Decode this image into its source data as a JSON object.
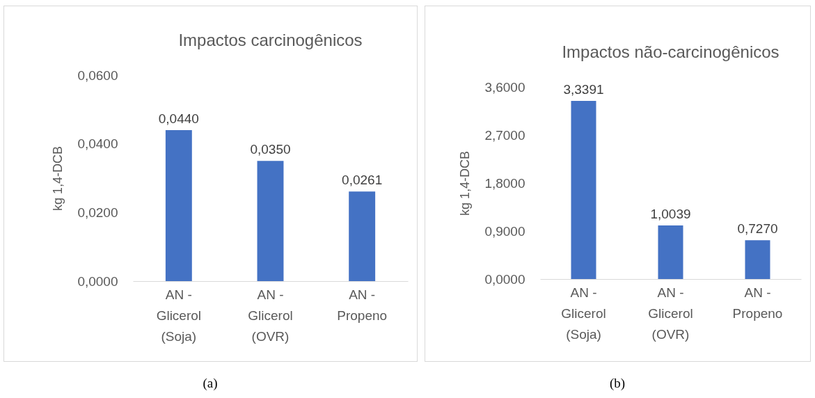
{
  "chart_data": [
    {
      "type": "bar",
      "title": "Impactos carcinogênicos",
      "ylabel": "kg 1,4-DCB",
      "categories": [
        "AN - Glicerol (Soja)",
        "AN - Glicerol (OVR)",
        "AN - Propeno"
      ],
      "values": [
        0.044,
        0.035,
        0.0261
      ],
      "value_labels": [
        "0,0440",
        "0,0350",
        "0,0261"
      ],
      "color": "#4472c4",
      "ylim": [
        0,
        0.06
      ],
      "yticks": [
        {
          "value": 0,
          "label": "0,0000"
        },
        {
          "value": 0.02,
          "label": "0,0200"
        },
        {
          "value": 0.04,
          "label": "0,0400"
        },
        {
          "value": 0.06,
          "label": "0,0600"
        }
      ],
      "grid": false,
      "annotations": [
        "(a)"
      ]
    },
    {
      "type": "bar",
      "title": "Impactos não-carcinogênicos",
      "ylabel": "kg 1,4-DCB",
      "categories": [
        "AN - Glicerol (Soja)",
        "AN - Glicerol (OVR)",
        "AN - Propeno"
      ],
      "values": [
        3.3391,
        1.0039,
        0.727
      ],
      "value_labels": [
        "3,3391",
        "1,0039",
        "0,7270"
      ],
      "color": "#4472c4",
      "ylim": [
        0,
        3.6
      ],
      "yticks": [
        {
          "value": 0,
          "label": "0,0000"
        },
        {
          "value": 0.9,
          "label": "0,9000"
        },
        {
          "value": 1.8,
          "label": "1,8000"
        },
        {
          "value": 2.7,
          "label": "2,7000"
        },
        {
          "value": 3.6,
          "label": "3,6000"
        }
      ],
      "grid": false,
      "annotations": [
        "(b)"
      ]
    }
  ]
}
